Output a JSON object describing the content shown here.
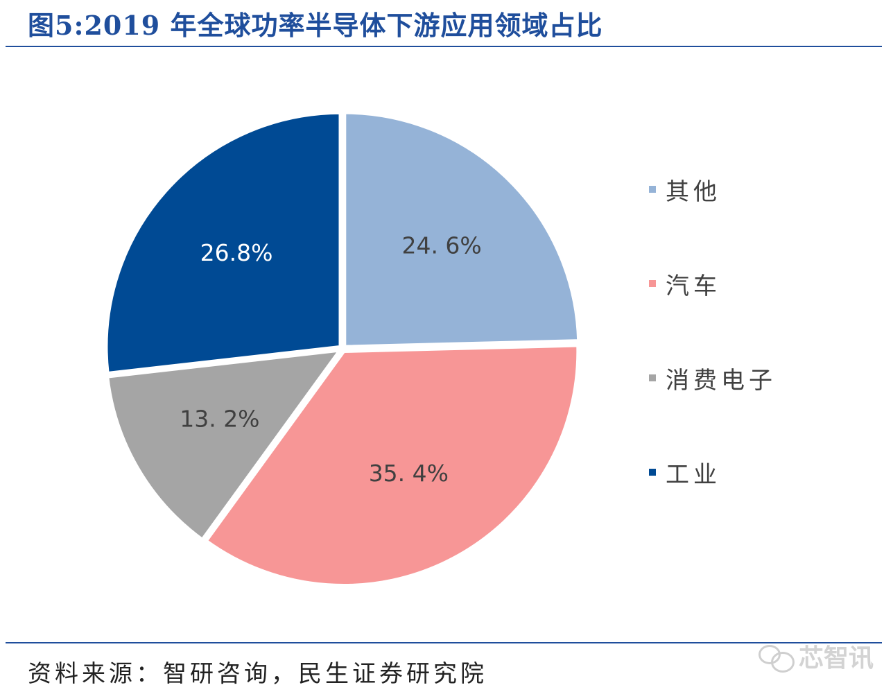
{
  "figure": {
    "title": "图5:2019 年全球功率半导体下游应用领域占比",
    "source": "资料来源：智研咨询，民生证券研究院",
    "watermark": "芯智讯"
  },
  "colors": {
    "title": "#1f4e9c",
    "rule": "#1f4e9c"
  },
  "icons": {
    "watermark": "wechat-bubbles-icon"
  },
  "chart_data": {
    "type": "pie",
    "start_angle_deg": 0,
    "direction": "clockwise",
    "slices": [
      {
        "name": "其他",
        "value": 24.6,
        "label": "24. 6%",
        "color": "#95b3d7",
        "label_color": "#404040"
      },
      {
        "name": "汽车",
        "value": 35.4,
        "label": "35. 4%",
        "color": "#f79696",
        "label_color": "#404040"
      },
      {
        "name": "消费电子",
        "value": 13.2,
        "label": "13. 2%",
        "color": "#a5a5a5",
        "label_color": "#404040"
      },
      {
        "name": "工业",
        "value": 26.8,
        "label": "26.8%",
        "color": "#004a94",
        "label_color": "#ffffff"
      }
    ],
    "legend": {
      "position": "right",
      "entries": [
        "其他",
        "汽车",
        "消费电子",
        "工业"
      ]
    }
  }
}
